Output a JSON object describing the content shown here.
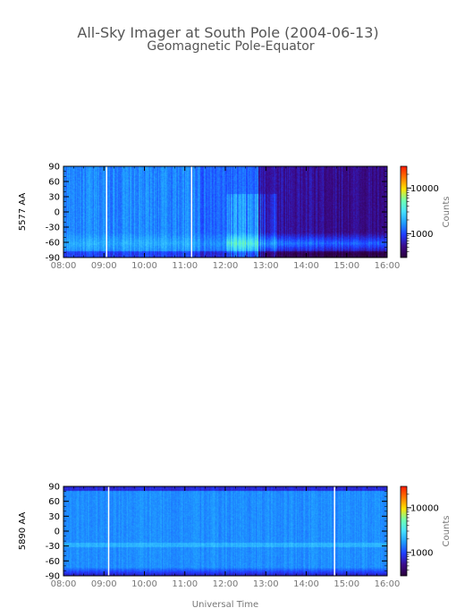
{
  "title": {
    "line1": "All-Sky Imager at South Pole (2004-06-13)",
    "line2": "Geomagnetic Pole-Equator"
  },
  "x_axis_label": "Universal Time",
  "colorbar_label": "Counts",
  "chart_data": [
    {
      "type": "heatmap",
      "ylabel": "5577 AA",
      "x_ticks": [
        "08:00",
        "09:00",
        "10:00",
        "11:00",
        "12:00",
        "13:00",
        "14:00",
        "15:00",
        "16:00"
      ],
      "y_ticks": [
        "90",
        "60",
        "30",
        "0",
        "-30",
        "-60",
        "-90"
      ],
      "xlim": [
        "08:00",
        "16:00"
      ],
      "ylim": [
        -90,
        90
      ],
      "colorbar_ticks": [
        "10000",
        "1000"
      ],
      "colorbar_scale": "log",
      "data_gaps_ut": [
        "09:04",
        "11:10"
      ],
      "colormap": [
        "#2b003a",
        "#3b0a8a",
        "#1f3cff",
        "#1e9bff",
        "#46e0ff",
        "#6fffb0",
        "#ffe200",
        "#ff7a00",
        "#ff1a00"
      ]
    },
    {
      "type": "heatmap",
      "ylabel": "5890 AA",
      "x_ticks": [
        "08:00",
        "09:00",
        "10:00",
        "11:00",
        "12:00",
        "13:00",
        "14:00",
        "15:00",
        "16:00"
      ],
      "y_ticks": [
        "90",
        "60",
        "30",
        "0",
        "-30",
        "-60",
        "-90"
      ],
      "xlim": [
        "08:00",
        "16:00"
      ],
      "ylim": [
        -90,
        90
      ],
      "colorbar_ticks": [
        "10000",
        "1000"
      ],
      "colorbar_scale": "log",
      "data_gaps_ut": [
        "09:07",
        "14:42"
      ],
      "colormap": [
        "#2b003a",
        "#3b0a8a",
        "#1f3cff",
        "#1e9bff",
        "#46e0ff",
        "#6fffb0",
        "#ffe200",
        "#ff7a00",
        "#ff1a00"
      ]
    }
  ]
}
